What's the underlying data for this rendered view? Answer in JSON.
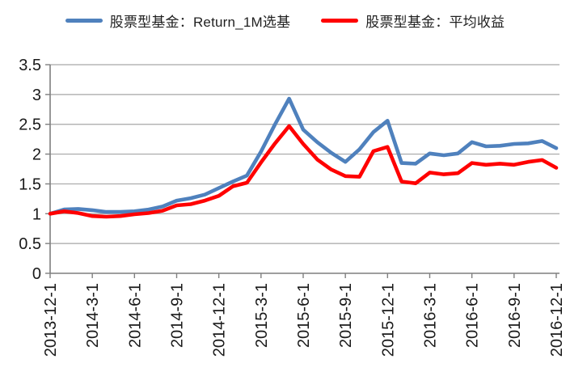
{
  "chart_data": {
    "type": "line",
    "title": "",
    "xlabel": "",
    "ylabel": "",
    "ylim": [
      0,
      3.5
    ],
    "y_ticks": [
      "0",
      "0.5",
      "1",
      "1.5",
      "2",
      "2.5",
      "3",
      "3.5"
    ],
    "grid": "horizontal",
    "legend_position": "top",
    "x": [
      "2013-12-1",
      "2014-1-1",
      "2014-2-1",
      "2014-3-1",
      "2014-4-1",
      "2014-5-1",
      "2014-6-1",
      "2014-7-1",
      "2014-8-1",
      "2014-9-1",
      "2014-10-1",
      "2014-11-1",
      "2014-12-1",
      "2015-1-1",
      "2015-2-1",
      "2015-3-1",
      "2015-4-1",
      "2015-5-1",
      "2015-6-1",
      "2015-7-1",
      "2015-8-1",
      "2015-9-1",
      "2015-10-1",
      "2015-11-1",
      "2015-12-1",
      "2016-1-1",
      "2016-2-1",
      "2016-3-1",
      "2016-4-1",
      "2016-5-1",
      "2016-6-1",
      "2016-7-1",
      "2016-8-1",
      "2016-9-1",
      "2016-10-1",
      "2016-11-1",
      "2016-12-1"
    ],
    "x_tick_labels": [
      "2013-12-1",
      "2014-3-1",
      "2014-6-1",
      "2014-9-1",
      "2014-12-1",
      "2015-3-1",
      "2015-6-1",
      "2015-9-1",
      "2015-12-1",
      "2016-3-1",
      "2016-6-1",
      "2016-9-1",
      "2016-12-1"
    ],
    "x_tick_every": 3,
    "series": [
      {
        "name": "股票型基金：Return_1M选基",
        "color": "#4F81BD",
        "values": [
          1.0,
          1.07,
          1.08,
          1.06,
          1.03,
          1.03,
          1.04,
          1.07,
          1.12,
          1.22,
          1.26,
          1.32,
          1.43,
          1.54,
          1.64,
          2.04,
          2.5,
          2.93,
          2.41,
          2.2,
          2.02,
          1.87,
          2.08,
          2.37,
          2.56,
          1.85,
          1.84,
          2.01,
          1.98,
          2.01,
          2.2,
          2.13,
          2.14,
          2.17,
          2.18,
          2.22,
          2.1
        ]
      },
      {
        "name": "股票型基金：平均收益",
        "color": "#FF0000",
        "values": [
          1.0,
          1.04,
          1.01,
          0.96,
          0.95,
          0.96,
          0.99,
          1.01,
          1.05,
          1.14,
          1.16,
          1.22,
          1.3,
          1.46,
          1.52,
          1.86,
          2.18,
          2.47,
          2.17,
          1.91,
          1.74,
          1.63,
          1.62,
          2.05,
          2.12,
          1.54,
          1.51,
          1.69,
          1.66,
          1.68,
          1.85,
          1.82,
          1.84,
          1.82,
          1.87,
          1.9,
          1.77
        ]
      }
    ],
    "colors": {
      "gridline": "#A6A6A6",
      "axis": "#7F7F7F",
      "text": "#1a1a1a"
    }
  }
}
